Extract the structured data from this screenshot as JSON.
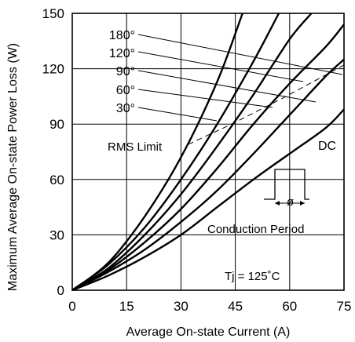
{
  "chart_data": {
    "type": "line",
    "title": "",
    "xlabel": "Average On-state Current (A)",
    "ylabel": "Maximum Average On-state Power Loss (W)",
    "xlim": [
      0,
      75
    ],
    "ylim": [
      0,
      150
    ],
    "x_ticks": [
      "0",
      "15",
      "30",
      "45",
      "60",
      "75"
    ],
    "y_ticks": [
      "0",
      "30",
      "60",
      "90",
      "120",
      "150"
    ],
    "grid": true,
    "series": [
      {
        "name": "180°",
        "x": [
          0,
          10,
          20,
          30,
          40,
          47
        ],
        "y": [
          0,
          15,
          40,
          72,
          113,
          150
        ]
      },
      {
        "name": "120°",
        "x": [
          0,
          10,
          20,
          30,
          40,
          50,
          57
        ],
        "y": [
          0,
          14,
          34,
          60,
          90,
          124,
          150
        ]
      },
      {
        "name": "90°",
        "x": [
          0,
          10,
          20,
          30,
          40,
          50,
          60,
          66
        ],
        "y": [
          0,
          12,
          30,
          52,
          78,
          106,
          136,
          150
        ]
      },
      {
        "name": "60°",
        "x": [
          0,
          10,
          20,
          30,
          40,
          50,
          60,
          70,
          75
        ],
        "y": [
          0,
          11,
          26,
          44,
          66,
          90,
          112,
          132,
          144
        ]
      },
      {
        "name": "30°",
        "x": [
          0,
          10,
          20,
          30,
          40,
          50,
          60,
          70,
          75
        ],
        "y": [
          0,
          10,
          22,
          37,
          54,
          74,
          95,
          116,
          125
        ]
      },
      {
        "name": "DC",
        "x": [
          0,
          10,
          20,
          30,
          40,
          50,
          60,
          70,
          75
        ],
        "y": [
          0,
          8,
          18,
          30,
          45,
          60,
          74,
          88,
          98
        ]
      }
    ],
    "rms_limit": {
      "x": [
        32,
        44,
        58,
        75
      ],
      "y": [
        79,
        90,
        104,
        122
      ]
    },
    "annotations": {
      "rms_limit": "RMS Limit",
      "dc": "DC",
      "conduction_period": "Conduction Period",
      "phi": "ø",
      "tj": "Tj = 125˚C"
    }
  }
}
